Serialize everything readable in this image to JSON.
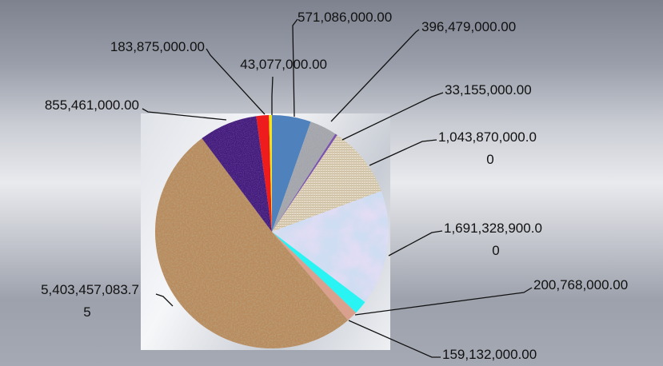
{
  "chart_data": {
    "type": "pie",
    "title": "",
    "legend": "none",
    "slices": [
      {
        "value": 571086000.0,
        "label": "571,086,000.00",
        "color": "#4f81bd",
        "texture": "solid"
      },
      {
        "value": 396479000.0,
        "label": "396,479,000.00",
        "color": "#a9aab0",
        "texture": "granite"
      },
      {
        "value": 33155000.0,
        "label": "33,155,000.00",
        "color": "#7b52b0",
        "texture": "solid"
      },
      {
        "value": 1043870000.0,
        "label": "1,043,870,000.0\n0",
        "color": "#e4d9c4",
        "texture": "canvas"
      },
      {
        "value": 1691328900.0,
        "label": "1,691,328,900.0\n0",
        "color": "#cfddf2",
        "texture": "bouquet"
      },
      {
        "value": 200768000.0,
        "label": "200,768,000.00",
        "color": "#29f3f3",
        "texture": "solid"
      },
      {
        "value": 159132000.0,
        "label": "159,132,000.00",
        "color": "#d9a08e",
        "texture": "solid"
      },
      {
        "value": 5403457083.75,
        "label": "5,403,457,083.7\n5",
        "color": "#b98a5c",
        "texture": "cork"
      },
      {
        "value": 855461000.0,
        "label": "855,461,000.00",
        "color": "#3f1c78",
        "texture": "denim"
      },
      {
        "value": 183875000.0,
        "label": "183,875,000.00",
        "color": "#ee1c1c",
        "texture": "solid"
      },
      {
        "value": 43077000.0,
        "label": "43,077,000.00",
        "color": "#f2e41c",
        "texture": "solid"
      }
    ]
  }
}
